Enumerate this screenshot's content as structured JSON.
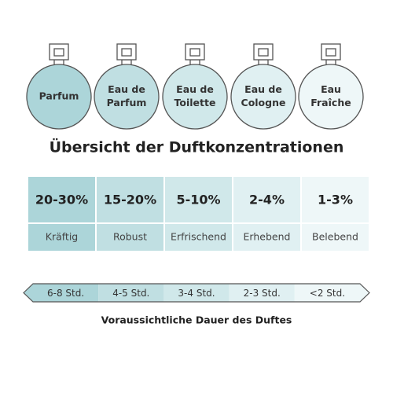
{
  "bottles": [
    {
      "lines": [
        "Parfum"
      ]
    },
    {
      "lines": [
        "Eau de",
        "Parfum"
      ]
    },
    {
      "lines": [
        "Eau de",
        "Toilette"
      ]
    },
    {
      "lines": [
        "Eau de",
        "Cologne"
      ]
    },
    {
      "lines": [
        "Eau",
        "Fraîche"
      ]
    }
  ],
  "title": "Übersicht der Duftkonzentrationen",
  "table": {
    "rows": [
      [
        "20-30%",
        "15-20%",
        "5-10%",
        "2-4%",
        "1-3%"
      ],
      [
        "Kräftig",
        "Robust",
        "Erfrischend",
        "Erhebend",
        "Belebend"
      ]
    ]
  },
  "duration": {
    "labels": [
      "6-8 Std.",
      "4-5 Std.",
      "3-4 Std.",
      "2-3 Std.",
      "<2 Std."
    ],
    "caption": "Voraussichtliche Dauer des Duftes"
  }
}
